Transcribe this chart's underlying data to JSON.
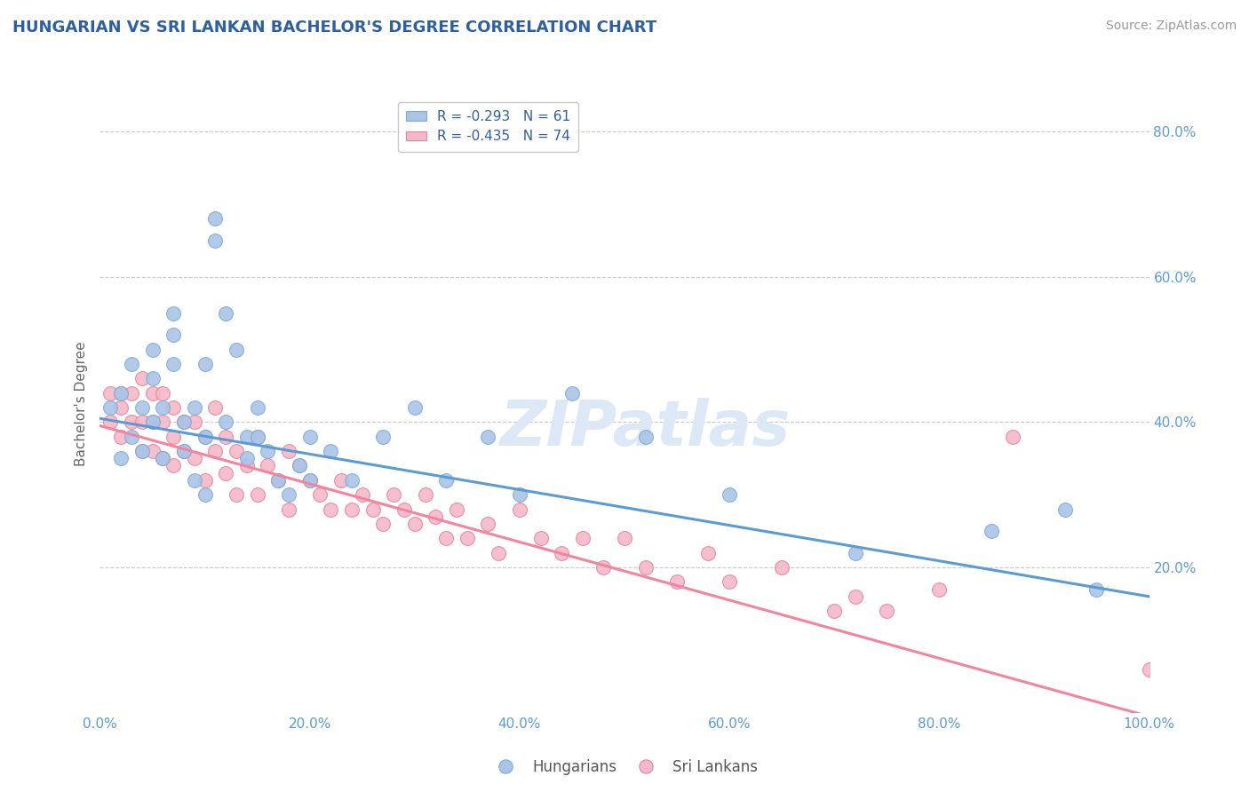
{
  "title": "HUNGARIAN VS SRI LANKAN BACHELOR'S DEGREE CORRELATION CHART",
  "source": "Source: ZipAtlas.com",
  "ylabel": "Bachelor's Degree",
  "xlim": [
    0.0,
    1.0
  ],
  "ylim": [
    0.0,
    0.85
  ],
  "x_ticks": [
    0.0,
    0.2,
    0.4,
    0.6,
    0.8,
    1.0
  ],
  "x_tick_labels": [
    "0.0%",
    "20.0%",
    "40.0%",
    "60.0%",
    "80.0%",
    "100.0%"
  ],
  "y_ticks": [
    0.2,
    0.4,
    0.6,
    0.8
  ],
  "y_tick_labels": [
    "20.0%",
    "40.0%",
    "60.0%",
    "80.0%"
  ],
  "legend_label_blue": "R = -0.293   N = 61",
  "legend_label_pink": "R = -0.435   N = 74",
  "blue_line_color": "#5b9bd5",
  "pink_line_color": "#f4849e",
  "dot_blue_face": "#aac4e8",
  "dot_blue_edge": "#7aadd4",
  "dot_pink_face": "#f4b8c8",
  "dot_pink_edge": "#e8859e",
  "grid_color": "#c8c8c8",
  "title_color": "#2e5fa3",
  "tick_color": "#5b9bd5",
  "watermark_text": "ZIPatlas",
  "watermark_color": "#dce8f5",
  "blue_intercept": 0.405,
  "blue_slope": -0.245,
  "pink_intercept": 0.395,
  "pink_slope": -0.4,
  "hungarian_x": [
    0.01,
    0.02,
    0.02,
    0.03,
    0.03,
    0.04,
    0.04,
    0.05,
    0.05,
    0.05,
    0.06,
    0.06,
    0.07,
    0.07,
    0.07,
    0.08,
    0.08,
    0.09,
    0.09,
    0.1,
    0.1,
    0.1,
    0.11,
    0.11,
    0.12,
    0.12,
    0.13,
    0.14,
    0.14,
    0.15,
    0.15,
    0.16,
    0.17,
    0.18,
    0.19,
    0.2,
    0.2,
    0.22,
    0.24,
    0.27,
    0.3,
    0.33,
    0.37,
    0.4,
    0.45,
    0.52,
    0.6,
    0.72,
    0.85,
    0.92,
    0.95
  ],
  "hungarian_y": [
    0.42,
    0.44,
    0.35,
    0.48,
    0.38,
    0.42,
    0.36,
    0.5,
    0.46,
    0.4,
    0.42,
    0.35,
    0.52,
    0.55,
    0.48,
    0.4,
    0.36,
    0.42,
    0.32,
    0.48,
    0.38,
    0.3,
    0.65,
    0.68,
    0.55,
    0.4,
    0.5,
    0.38,
    0.35,
    0.42,
    0.38,
    0.36,
    0.32,
    0.3,
    0.34,
    0.38,
    0.32,
    0.36,
    0.32,
    0.38,
    0.42,
    0.32,
    0.38,
    0.3,
    0.44,
    0.38,
    0.3,
    0.22,
    0.25,
    0.28,
    0.17
  ],
  "srilankan_x": [
    0.01,
    0.01,
    0.02,
    0.02,
    0.02,
    0.03,
    0.03,
    0.04,
    0.04,
    0.04,
    0.05,
    0.05,
    0.05,
    0.06,
    0.06,
    0.06,
    0.07,
    0.07,
    0.07,
    0.08,
    0.08,
    0.09,
    0.09,
    0.1,
    0.1,
    0.11,
    0.11,
    0.12,
    0.12,
    0.13,
    0.13,
    0.14,
    0.15,
    0.15,
    0.16,
    0.17,
    0.18,
    0.18,
    0.19,
    0.2,
    0.21,
    0.22,
    0.23,
    0.24,
    0.25,
    0.26,
    0.27,
    0.28,
    0.29,
    0.3,
    0.31,
    0.32,
    0.33,
    0.34,
    0.35,
    0.37,
    0.38,
    0.4,
    0.42,
    0.44,
    0.46,
    0.48,
    0.5,
    0.52,
    0.55,
    0.58,
    0.6,
    0.65,
    0.7,
    0.72,
    0.75,
    0.8,
    0.87,
    1.0
  ],
  "srilankan_y": [
    0.44,
    0.4,
    0.44,
    0.38,
    0.42,
    0.44,
    0.4,
    0.46,
    0.4,
    0.36,
    0.44,
    0.4,
    0.36,
    0.44,
    0.4,
    0.35,
    0.42,
    0.38,
    0.34,
    0.4,
    0.36,
    0.4,
    0.35,
    0.38,
    0.32,
    0.42,
    0.36,
    0.38,
    0.33,
    0.36,
    0.3,
    0.34,
    0.38,
    0.3,
    0.34,
    0.32,
    0.36,
    0.28,
    0.34,
    0.32,
    0.3,
    0.28,
    0.32,
    0.28,
    0.3,
    0.28,
    0.26,
    0.3,
    0.28,
    0.26,
    0.3,
    0.27,
    0.24,
    0.28,
    0.24,
    0.26,
    0.22,
    0.28,
    0.24,
    0.22,
    0.24,
    0.2,
    0.24,
    0.2,
    0.18,
    0.22,
    0.18,
    0.2,
    0.14,
    0.16,
    0.14,
    0.17,
    0.38,
    0.06
  ],
  "background_color": "#ffffff"
}
